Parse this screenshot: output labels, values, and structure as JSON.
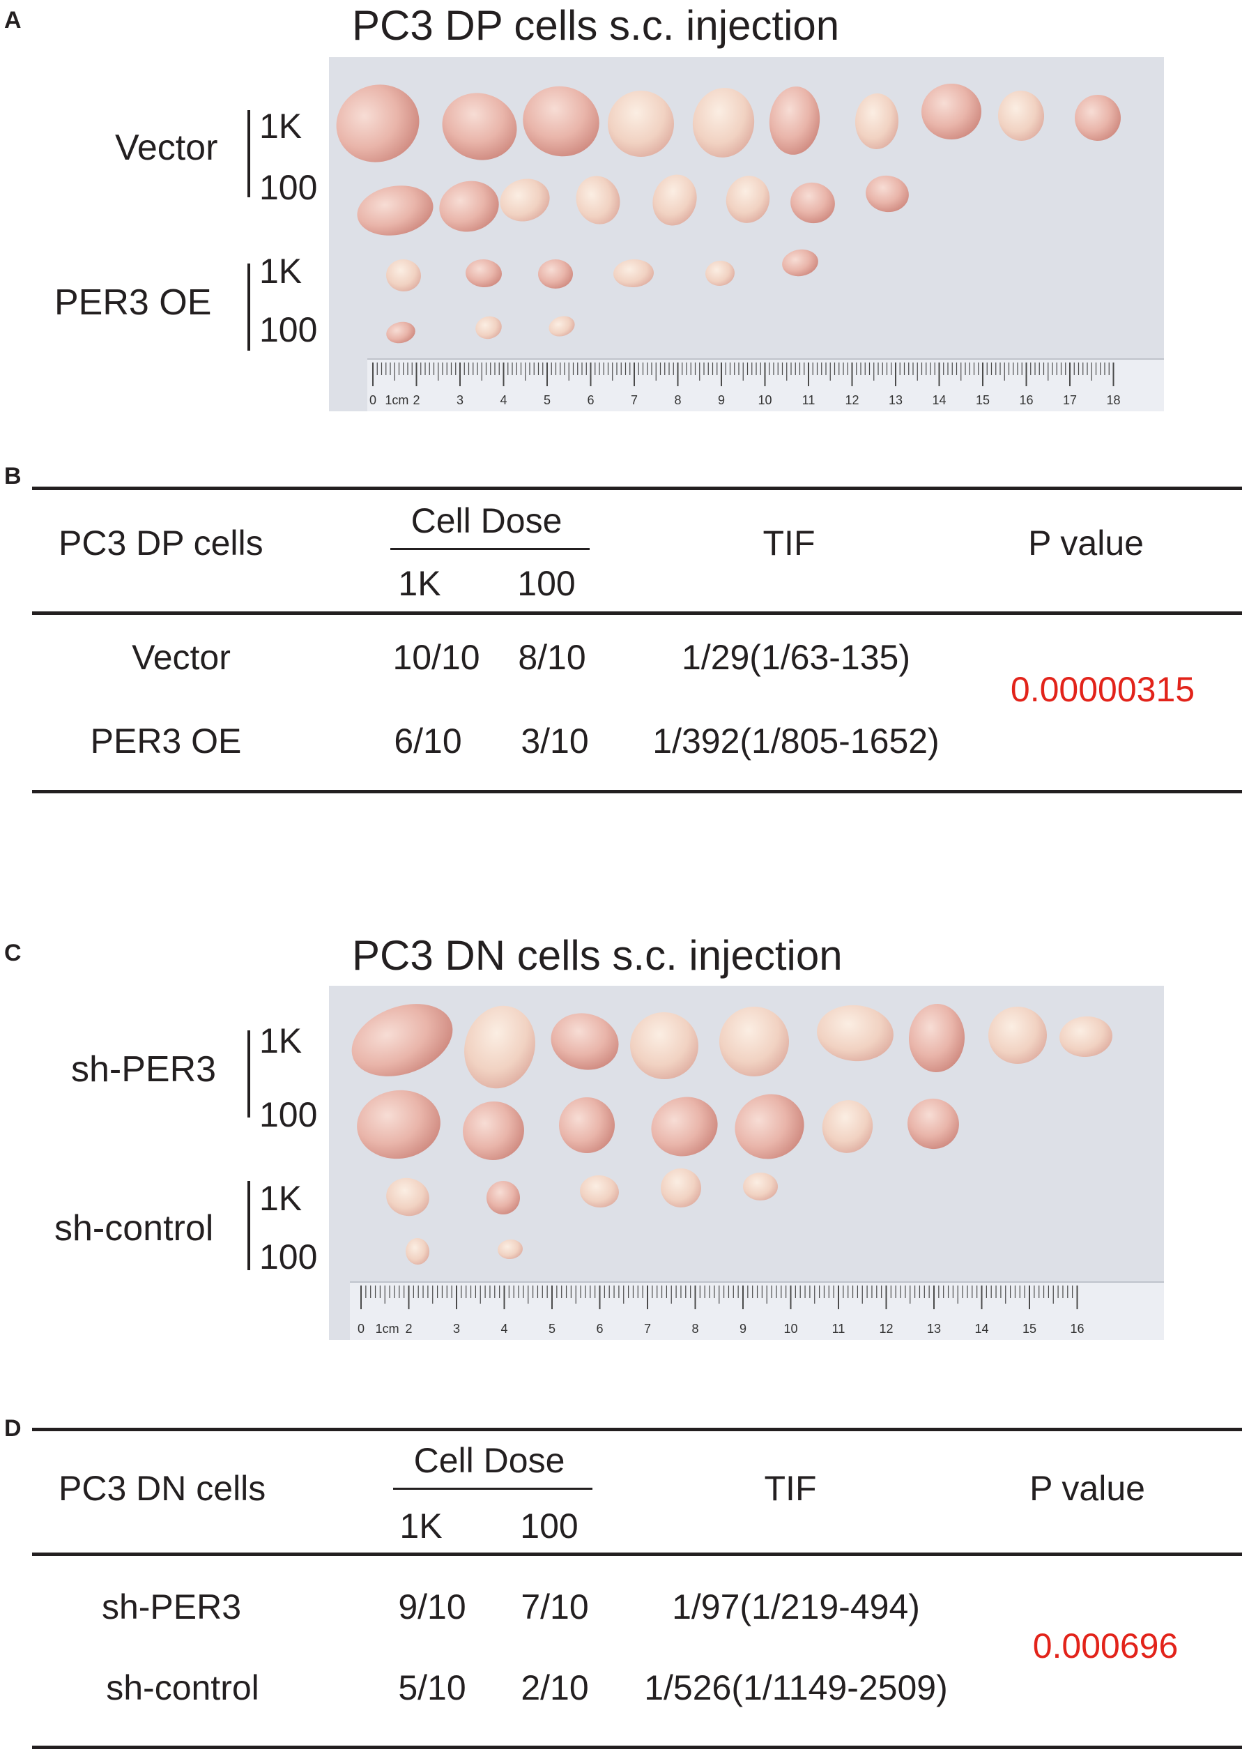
{
  "panels": {
    "A": {
      "letter": "A",
      "title": "PC3 DP cells s.c. injection",
      "groups": [
        {
          "name": "Vector",
          "doses": [
            "1K",
            "100"
          ]
        },
        {
          "name": "PER3 OE",
          "doses": [
            "1K",
            "100"
          ]
        }
      ],
      "ruler": {
        "labels": [
          "0",
          "1cm",
          "2",
          "3",
          "4",
          "5",
          "6",
          "7",
          "8",
          "9",
          "10",
          "11",
          "12",
          "13",
          "14",
          "15",
          "16",
          "17",
          "18"
        ]
      }
    },
    "B": {
      "letter": "B",
      "header": {
        "cells": "PC3 DP cells",
        "dose": "Cell Dose",
        "dose_1k": "1K",
        "dose_100": "100",
        "tif": "TIF",
        "p": "P value"
      },
      "rows": [
        {
          "group": "Vector",
          "d1k": "10/10",
          "d100": "8/10",
          "tif": "1/29(1/63-135)"
        },
        {
          "group": "PER3 OE",
          "d1k": "6/10",
          "d100": "3/10",
          "tif": "1/392(1/805-1652)"
        }
      ],
      "p_value": "0.00000315",
      "p_color": "#e2231a"
    },
    "C": {
      "letter": "C",
      "title": "PC3 DN cells s.c. injection",
      "groups": [
        {
          "name": "sh-PER3",
          "doses": [
            "1K",
            "100"
          ]
        },
        {
          "name": "sh-control",
          "doses": [
            "1K",
            "100"
          ]
        }
      ],
      "ruler": {
        "labels": [
          "0",
          "1cm",
          "2",
          "3",
          "4",
          "5",
          "6",
          "7",
          "8",
          "9",
          "10",
          "11",
          "12",
          "13",
          "14",
          "15",
          "16"
        ]
      }
    },
    "D": {
      "letter": "D",
      "header": {
        "cells": "PC3 DN cells",
        "dose": "Cell Dose",
        "dose_1k": "1K",
        "dose_100": "100",
        "tif": "TIF",
        "p": "P value"
      },
      "rows": [
        {
          "group": "sh-PER3",
          "d1k": "9/10",
          "d100": "7/10",
          "tif": "1/97(1/219-494)"
        },
        {
          "group": "sh-control",
          "d1k": "5/10",
          "d100": "2/10",
          "tif": "1/526(1/1149-2509)"
        }
      ],
      "p_value": "0.000696",
      "p_color": "#e2231a"
    }
  }
}
